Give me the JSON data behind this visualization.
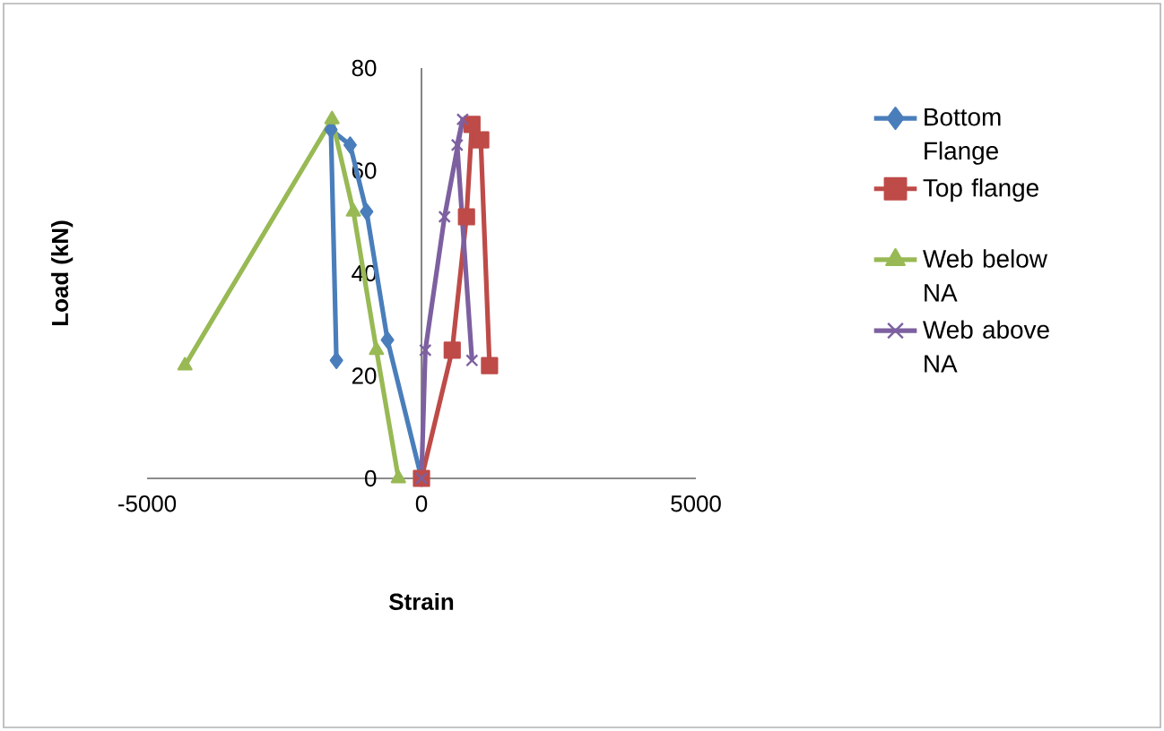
{
  "chart_data": {
    "type": "line",
    "xlabel": "Strain",
    "ylabel": "Load (kN)",
    "xlim": [
      -5000,
      5000
    ],
    "ylim": [
      0,
      80
    ],
    "xticks": [
      -5000,
      0,
      5000
    ],
    "yticks": [
      0,
      20,
      40,
      60,
      80
    ],
    "grid": false,
    "legend": "right",
    "line_style": "solid",
    "series": [
      {
        "name": "Bottom Flange",
        "color": "#4a7ebb",
        "marker": "diamond",
        "x": [
          0,
          -620,
          -1000,
          -1300,
          -1650,
          -1550
        ],
        "values": [
          0,
          27,
          52,
          65,
          68,
          23
        ]
      },
      {
        "name": "Top flange",
        "color": "#be4b48",
        "marker": "square",
        "x": [
          0,
          560,
          820,
          920,
          1080,
          1240
        ],
        "values": [
          0,
          25,
          51,
          69,
          66,
          22
        ]
      },
      {
        "name": "Web below NA",
        "color": "#98b954",
        "marker": "triangle",
        "x": [
          -420,
          -820,
          -1240,
          -1630,
          -4310
        ],
        "values": [
          0,
          25,
          52,
          70,
          22
        ]
      },
      {
        "name": "Web above NA",
        "color": "#7d60a0",
        "marker": "cross",
        "x": [
          0,
          70,
          420,
          750,
          650,
          920
        ],
        "values": [
          0,
          25,
          51,
          70,
          65,
          23
        ]
      }
    ]
  }
}
